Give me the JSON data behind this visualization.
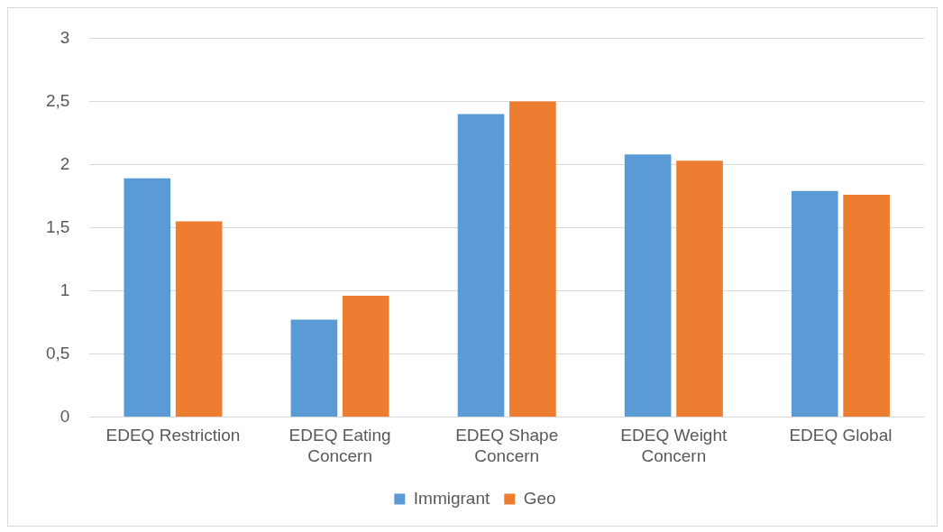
{
  "chart_data": {
    "type": "bar",
    "categories": [
      "EDEQ Restriction",
      "EDEQ Eating Concern",
      "EDEQ Shape Concern",
      "EDEQ Weight Concern",
      "EDEQ Global"
    ],
    "series": [
      {
        "name": "Immigrant",
        "color": "#5b9bd5",
        "values": [
          1.89,
          0.77,
          2.4,
          2.08,
          1.79
        ]
      },
      {
        "name": "Geo",
        "color": "#ed7d31",
        "values": [
          1.55,
          0.96,
          2.5,
          2.03,
          1.76
        ]
      }
    ],
    "ylim": [
      0,
      3
    ],
    "yticks": [
      0,
      {
        "value": 0.5,
        "label": "0,5"
      },
      1,
      {
        "value": 1.5,
        "label": "1,5"
      },
      2,
      {
        "value": 2.5,
        "label": "2,5"
      },
      3
    ],
    "grid": "y",
    "legend": "bottom"
  }
}
